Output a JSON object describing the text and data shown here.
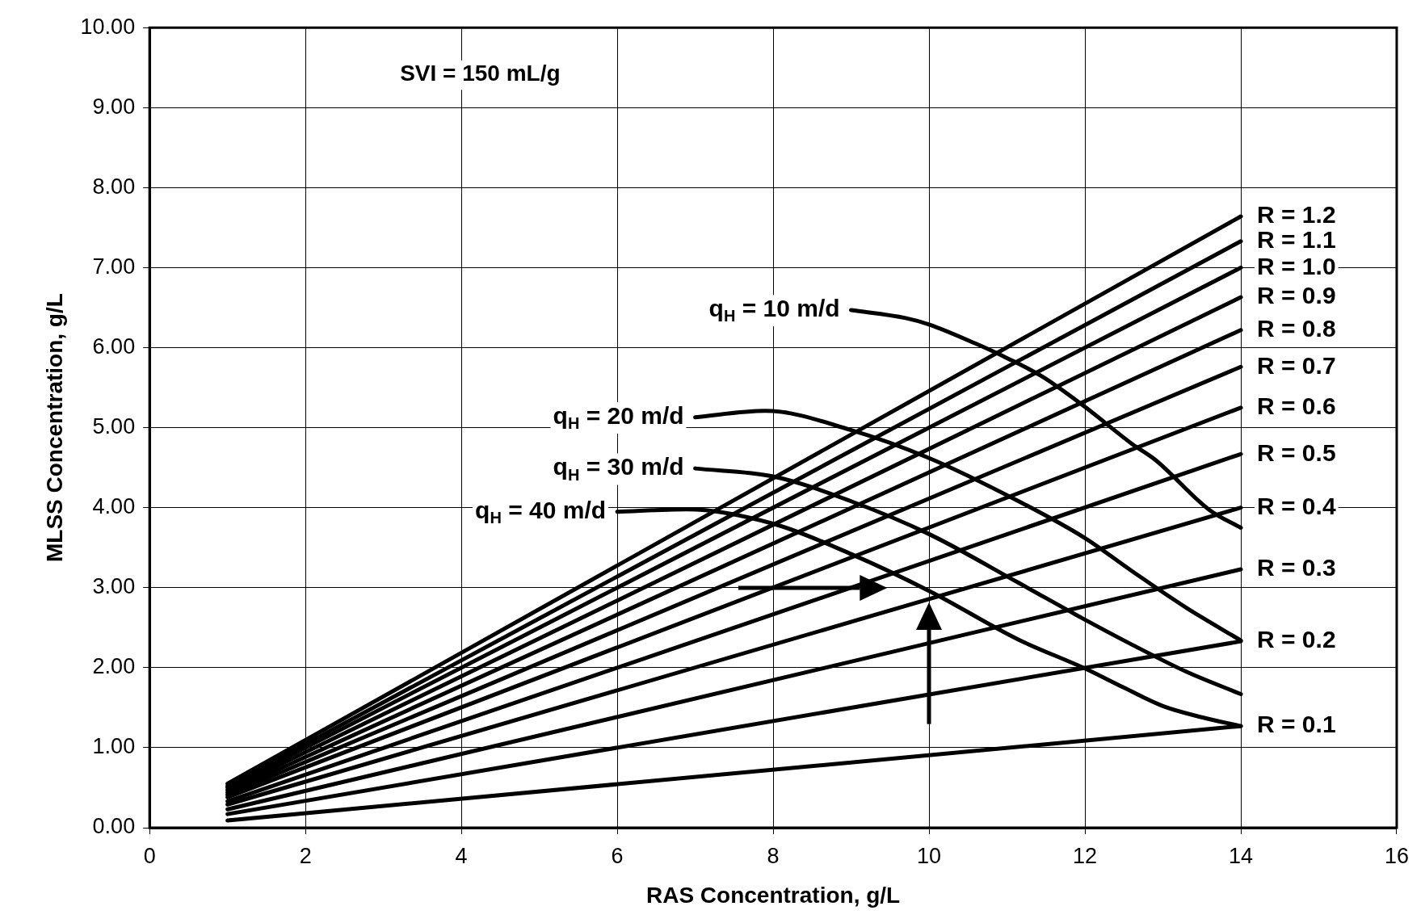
{
  "chart_data": {
    "type": "line",
    "xlabel": "RAS Concentration, g/L",
    "ylabel": "MLSS Concentration, g/L",
    "annotations": [
      "SVI = 150 mL/g"
    ],
    "xlim": [
      0,
      16
    ],
    "xticks": [
      0,
      2,
      4,
      6,
      8,
      10,
      12,
      14,
      16
    ],
    "ylim": [
      0,
      10
    ],
    "yticks": [
      {
        "value": 0,
        "label": "0.00"
      },
      {
        "value": 1,
        "label": "1.00"
      },
      {
        "value": 2,
        "label": "2.00"
      },
      {
        "value": 3,
        "label": "3.00"
      },
      {
        "value": 4,
        "label": "4.00"
      },
      {
        "value": 5,
        "label": "5.00"
      },
      {
        "value": 6,
        "label": "6.00"
      },
      {
        "value": 7,
        "label": "7.00"
      },
      {
        "value": 8,
        "label": "8.00"
      },
      {
        "value": 9,
        "label": "9.00"
      },
      {
        "value": 10,
        "label": "10.00"
      }
    ],
    "grid": true,
    "legend": false,
    "marker": "none",
    "line_style": "solid",
    "series": [
      {
        "name": "R = 1.2",
        "color": "#000000",
        "x": [
          1,
          14
        ],
        "values": [
          0.55,
          7.64
        ]
      },
      {
        "name": "R = 1.1",
        "color": "#000000",
        "x": [
          1,
          14
        ],
        "values": [
          0.52,
          7.33
        ]
      },
      {
        "name": "R = 1.0",
        "color": "#000000",
        "x": [
          1,
          14
        ],
        "values": [
          0.5,
          7.0
        ]
      },
      {
        "name": "R = 0.9",
        "color": "#000000",
        "x": [
          1,
          14
        ],
        "values": [
          0.47,
          6.63
        ]
      },
      {
        "name": "R = 0.8",
        "color": "#000000",
        "x": [
          1,
          14
        ],
        "values": [
          0.44,
          6.22
        ]
      },
      {
        "name": "R = 0.7",
        "color": "#000000",
        "x": [
          1,
          14
        ],
        "values": [
          0.41,
          5.76
        ]
      },
      {
        "name": "R = 0.6",
        "color": "#000000",
        "x": [
          1,
          14
        ],
        "values": [
          0.38,
          5.25
        ]
      },
      {
        "name": "R = 0.5",
        "color": "#000000",
        "x": [
          1,
          14
        ],
        "values": [
          0.33,
          4.67
        ]
      },
      {
        "name": "R = 0.4",
        "color": "#000000",
        "x": [
          1,
          14
        ],
        "values": [
          0.29,
          4.0
        ]
      },
      {
        "name": "R = 0.3",
        "color": "#000000",
        "x": [
          1,
          14
        ],
        "values": [
          0.23,
          3.23
        ]
      },
      {
        "name": "R = 0.2",
        "color": "#000000",
        "x": [
          1,
          14
        ],
        "values": [
          0.17,
          2.33
        ]
      },
      {
        "name": "R = 0.1",
        "color": "#000000",
        "x": [
          1,
          14
        ],
        "values": [
          0.09,
          1.27
        ]
      },
      {
        "name": "q$_{H}$ = 10 m/d",
        "color": "#000000",
        "x": [
          9.0,
          9.7,
          10.0,
          10.6,
          11.0,
          11.45,
          12.0,
          12.6,
          12.9,
          13.6,
          14.0
        ],
        "values": [
          6.47,
          6.37,
          6.29,
          6.05,
          5.87,
          5.64,
          5.26,
          4.8,
          4.6,
          3.97,
          3.75
        ]
      },
      {
        "name": "q$_{H}$ = 20 m/d",
        "color": "#000000",
        "x": [
          7.0,
          7.9,
          9.0,
          10.0,
          11.15,
          12.0,
          12.6,
          13.3,
          14.0
        ],
        "values": [
          5.13,
          5.21,
          4.97,
          4.62,
          4.08,
          3.62,
          3.21,
          2.75,
          2.34
        ]
      },
      {
        "name": "q$_{H}$ = 30 m/d",
        "color": "#000000",
        "x": [
          7.0,
          8.0,
          9.0,
          10.0,
          11.15,
          12.0,
          12.6,
          13.3,
          14.0
        ],
        "values": [
          4.49,
          4.39,
          4.08,
          3.67,
          3.06,
          2.6,
          2.29,
          1.95,
          1.67
        ]
      },
      {
        "name": "q$_{H}$ = 40 m/d",
        "color": "#000000",
        "x": [
          6.0,
          6.9,
          8.0,
          9.0,
          10.0,
          11.15,
          12.0,
          12.5,
          13.0,
          13.5,
          14.0
        ],
        "values": [
          3.95,
          3.98,
          3.8,
          3.42,
          2.96,
          2.35,
          1.99,
          1.75,
          1.52,
          1.38,
          1.27
        ]
      }
    ]
  }
}
